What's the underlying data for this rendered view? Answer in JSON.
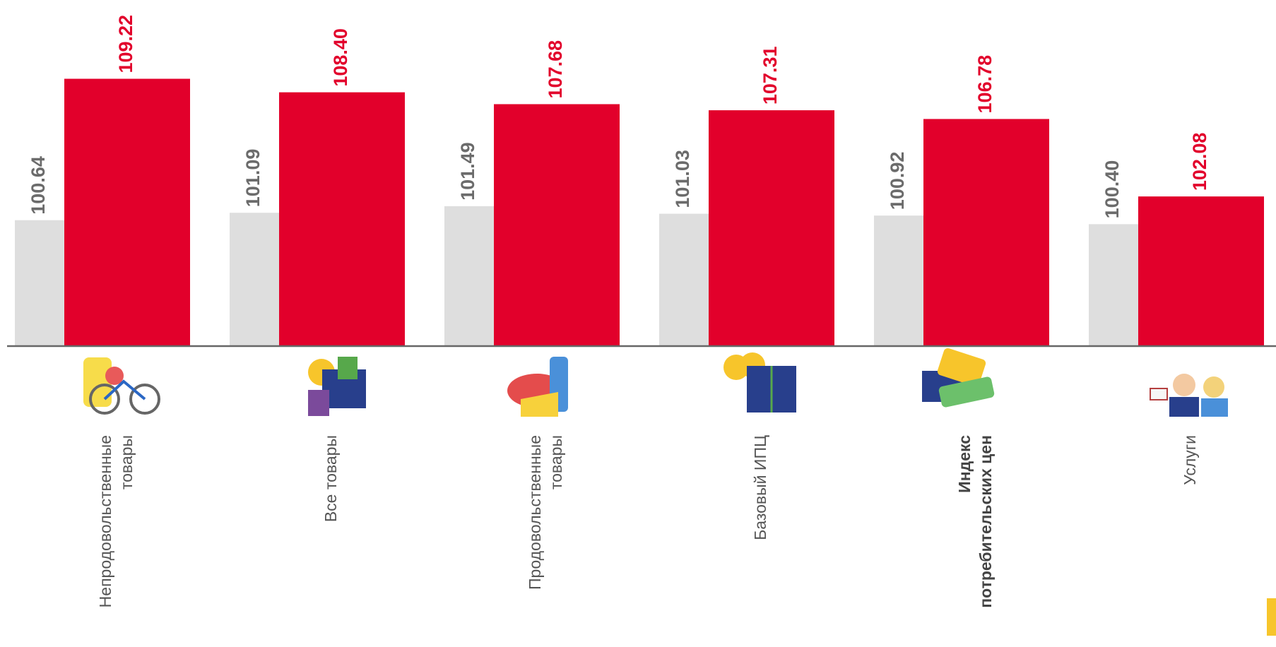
{
  "chart_data": {
    "type": "bar",
    "categories": [
      "Непродовольственные\nтовары",
      "Все товары",
      "Продовольственные\nтовары",
      "Базовый ИПЦ",
      "Индекс\nпотребительских цен",
      "Услуги"
    ],
    "series": [
      {
        "color": "#dedede",
        "label_color": "#6b6b6b",
        "values": [
          100.64,
          101.09,
          101.49,
          101.03,
          100.92,
          100.4
        ],
        "value_labels": [
          "100.64",
          "101.09",
          "101.49",
          "101.03",
          "100.92",
          "100.40"
        ]
      },
      {
        "color": "#e2002b",
        "label_color": "#e2002b",
        "values": [
          109.22,
          108.4,
          107.68,
          107.31,
          106.78,
          102.08
        ],
        "value_labels": [
          "109.22",
          "108.40",
          "107.68",
          "107.31",
          "106.78",
          "102.08"
        ]
      }
    ],
    "ylim": [
      93,
      114
    ]
  }
}
